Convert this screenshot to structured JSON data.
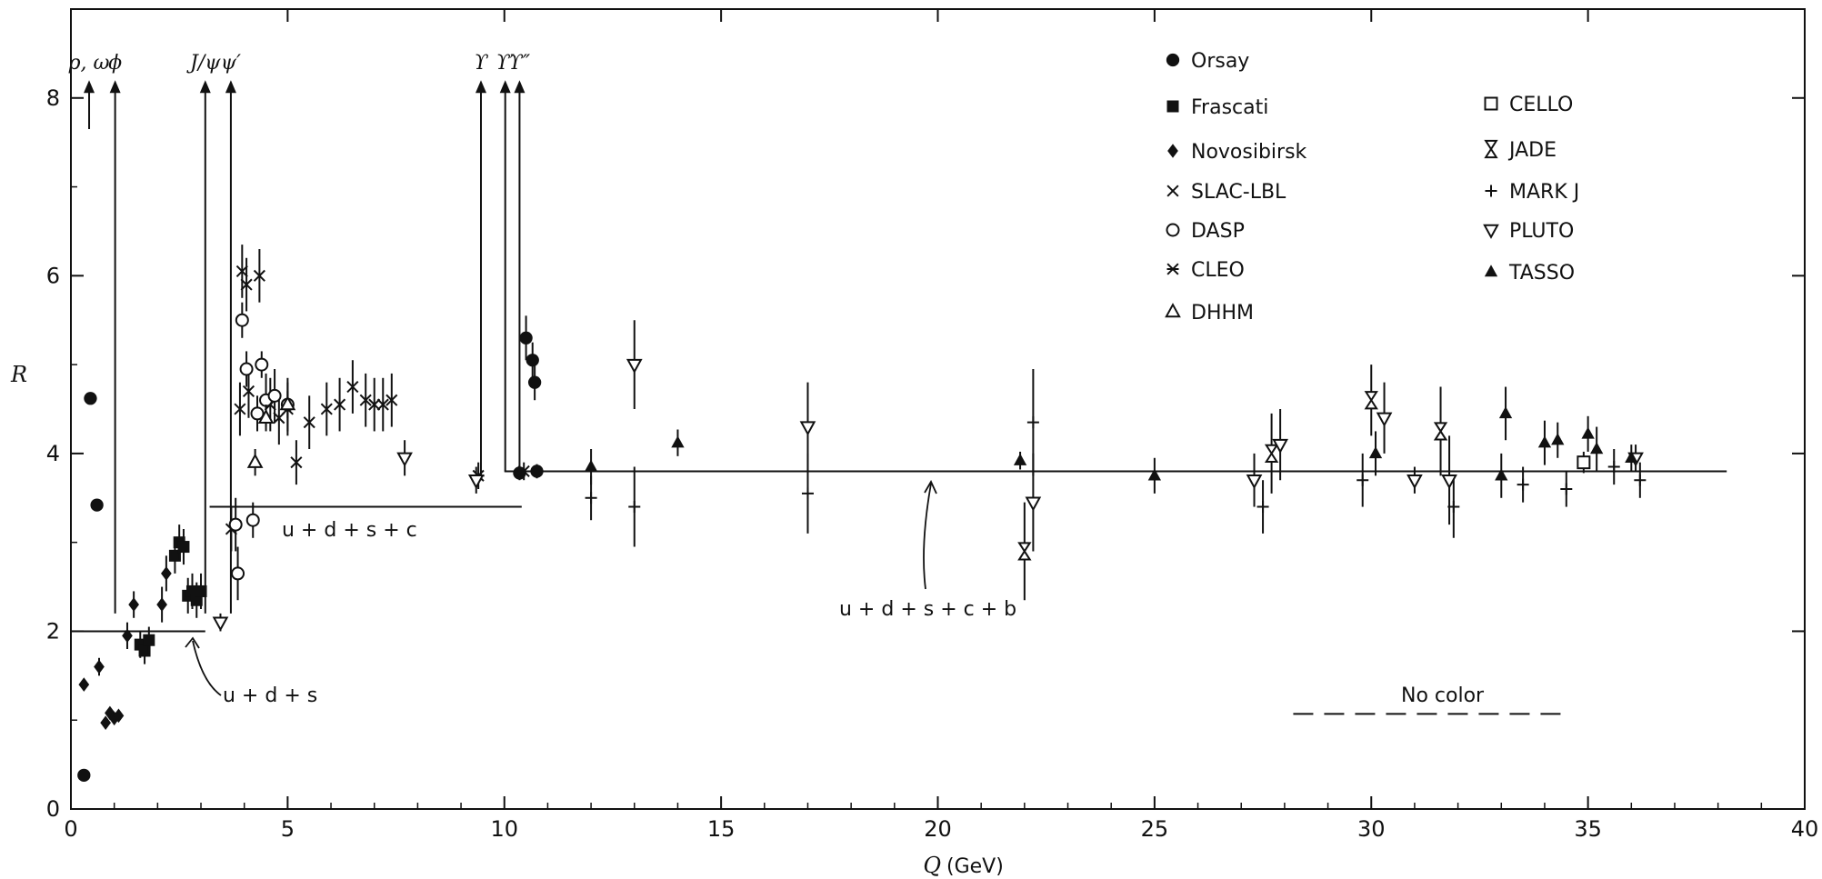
{
  "chart_data": {
    "type": "scatter",
    "xlabel": "Q",
    "xunit": "(GeV)",
    "ylabel": "R",
    "xlim": [
      0,
      40
    ],
    "ylim": [
      0,
      9
    ],
    "xticks": [
      0,
      5,
      10,
      15,
      20,
      25,
      30,
      35,
      40
    ],
    "yticks": [
      0,
      2,
      4,
      6,
      8
    ],
    "grid": false,
    "legend_position": "top-right",
    "quark_lines": [
      {
        "label": "u + d + s",
        "x": [
          0,
          3.1
        ],
        "y": 2.0
      },
      {
        "label": "u + d + s + c",
        "x": [
          3.2,
          10.4
        ],
        "y": 3.4
      },
      {
        "label": "u + d + s + c + b",
        "x": [
          10.0,
          38.2
        ],
        "y": 3.8
      }
    ],
    "no_color_line": {
      "label": "No color",
      "x": [
        28.2,
        34.4
      ],
      "y": 1.07
    },
    "resonances": [
      {
        "label": "ρ, ω",
        "x": 0.42,
        "y_from": 7.65,
        "y_to": 8.2
      },
      {
        "label": "ϕ",
        "x": 1.02,
        "y_from": 2.2,
        "y_to": 8.2
      },
      {
        "label": "J/ψ",
        "x": 3.1,
        "y_from": 2.2,
        "y_to": 8.2
      },
      {
        "label": "ψ′",
        "x": 3.69,
        "y_from": 2.2,
        "y_to": 8.2
      },
      {
        "label": "ϒ",
        "x": 9.46,
        "y_from": 3.7,
        "y_to": 8.2
      },
      {
        "label": "ϒ′",
        "x": 10.02,
        "y_from": 3.8,
        "y_to": 8.2
      },
      {
        "label": "ϒ″",
        "x": 10.35,
        "y_from": 3.8,
        "y_to": 8.2
      }
    ],
    "legend": [
      {
        "label": "Orsay",
        "marker": "circle-filled"
      },
      {
        "label": "Frascati",
        "marker": "square-filled"
      },
      {
        "label": "Novosibirsk",
        "marker": "diamond-filled"
      },
      {
        "label": "SLAC-LBL",
        "marker": "cross"
      },
      {
        "label": "DASP",
        "marker": "circle-open"
      },
      {
        "label": "CLEO",
        "marker": "asterisk"
      },
      {
        "label": "DHHM",
        "marker": "triangle-up-open"
      },
      {
        "label": "CELLO",
        "marker": "square-open"
      },
      {
        "label": "JADE",
        "marker": "hourglass"
      },
      {
        "label": "MARK J",
        "marker": "plus"
      },
      {
        "label": "PLUTO",
        "marker": "triangle-down-open"
      },
      {
        "label": "TASSO",
        "marker": "triangle-up-filled"
      }
    ],
    "series": [
      {
        "name": "Orsay",
        "marker": "circle-filled",
        "points": [
          {
            "x": 0.3,
            "y": 0.38,
            "err": 0.05
          },
          {
            "x": 0.45,
            "y": 4.62,
            "err": 0.05
          },
          {
            "x": 0.6,
            "y": 3.42,
            "err": 0.05
          },
          {
            "x": 10.5,
            "y": 5.3,
            "err": 0.25
          },
          {
            "x": 10.65,
            "y": 5.05,
            "err": 0.2
          },
          {
            "x": 10.7,
            "y": 4.8,
            "err": 0.2
          },
          {
            "x": 10.35,
            "y": 3.78,
            "err": 0.08
          },
          {
            "x": 10.75,
            "y": 3.8,
            "err": 0.08
          }
        ]
      },
      {
        "name": "Frascati",
        "marker": "square-filled",
        "points": [
          {
            "x": 1.6,
            "y": 1.85,
            "err": 0.15
          },
          {
            "x": 1.7,
            "y": 1.78,
            "err": 0.15
          },
          {
            "x": 1.8,
            "y": 1.9,
            "err": 0.15
          },
          {
            "x": 2.4,
            "y": 2.85,
            "err": 0.2
          },
          {
            "x": 2.5,
            "y": 3.0,
            "err": 0.2
          },
          {
            "x": 2.6,
            "y": 2.95,
            "err": 0.2
          },
          {
            "x": 2.7,
            "y": 2.4,
            "err": 0.2
          },
          {
            "x": 2.8,
            "y": 2.45,
            "err": 0.2
          },
          {
            "x": 2.9,
            "y": 2.35,
            "err": 0.2
          },
          {
            "x": 3.0,
            "y": 2.45,
            "err": 0.2
          }
        ]
      },
      {
        "name": "Novosibirsk",
        "marker": "diamond-filled",
        "points": [
          {
            "x": 0.3,
            "y": 1.4,
            "err": 0.05
          },
          {
            "x": 0.65,
            "y": 1.6,
            "err": 0.1
          },
          {
            "x": 0.8,
            "y": 0.97,
            "err": 0.05
          },
          {
            "x": 0.9,
            "y": 1.08,
            "err": 0.05
          },
          {
            "x": 1.0,
            "y": 1.02,
            "err": 0.05
          },
          {
            "x": 1.1,
            "y": 1.05,
            "err": 0.05
          },
          {
            "x": 1.3,
            "y": 1.95,
            "err": 0.15
          },
          {
            "x": 1.45,
            "y": 2.3,
            "err": 0.15
          },
          {
            "x": 2.1,
            "y": 2.3,
            "err": 0.2
          },
          {
            "x": 2.2,
            "y": 2.65,
            "err": 0.2
          }
        ]
      },
      {
        "name": "SLAC-LBL",
        "marker": "cross",
        "points": [
          {
            "x": 3.7,
            "y": 3.15,
            "err": 0.25
          },
          {
            "x": 3.9,
            "y": 4.5,
            "err": 0.3
          },
          {
            "x": 3.95,
            "y": 6.05,
            "err": 0.3
          },
          {
            "x": 4.05,
            "y": 5.9,
            "err": 0.3
          },
          {
            "x": 4.1,
            "y": 4.7,
            "err": 0.3
          },
          {
            "x": 4.35,
            "y": 6.0,
            "err": 0.3
          },
          {
            "x": 4.6,
            "y": 4.55,
            "err": 0.3
          },
          {
            "x": 4.8,
            "y": 4.4,
            "err": 0.3
          },
          {
            "x": 5.0,
            "y": 4.5,
            "err": 0.3
          },
          {
            "x": 5.2,
            "y": 3.9,
            "err": 0.25
          },
          {
            "x": 5.5,
            "y": 4.35,
            "err": 0.3
          },
          {
            "x": 5.9,
            "y": 4.5,
            "err": 0.3
          },
          {
            "x": 6.2,
            "y": 4.55,
            "err": 0.3
          },
          {
            "x": 6.5,
            "y": 4.75,
            "err": 0.3
          },
          {
            "x": 6.8,
            "y": 4.6,
            "err": 0.3
          },
          {
            "x": 7.0,
            "y": 4.55,
            "err": 0.3
          },
          {
            "x": 7.2,
            "y": 4.55,
            "err": 0.3
          },
          {
            "x": 7.4,
            "y": 4.6,
            "err": 0.3
          }
        ]
      },
      {
        "name": "DASP",
        "marker": "circle-open",
        "points": [
          {
            "x": 3.8,
            "y": 3.2,
            "err": 0.3
          },
          {
            "x": 3.85,
            "y": 2.65,
            "err": 0.3
          },
          {
            "x": 3.95,
            "y": 5.5,
            "err": 0.2
          },
          {
            "x": 4.05,
            "y": 4.95,
            "err": 0.2
          },
          {
            "x": 4.2,
            "y": 3.25,
            "err": 0.2
          },
          {
            "x": 4.3,
            "y": 4.45,
            "err": 0.2
          },
          {
            "x": 4.4,
            "y": 5.0,
            "err": 0.15
          },
          {
            "x": 4.5,
            "y": 4.6,
            "err": 0.3
          },
          {
            "x": 4.7,
            "y": 4.65,
            "err": 0.3
          },
          {
            "x": 5.0,
            "y": 4.55,
            "err": 0.3
          }
        ]
      },
      {
        "name": "CLEO",
        "marker": "asterisk",
        "points": [
          {
            "x": 9.4,
            "y": 3.75,
            "err": 0.15
          },
          {
            "x": 10.45,
            "y": 3.8,
            "err": 0.1
          }
        ]
      },
      {
        "name": "DHHM",
        "marker": "triangle-up-open",
        "points": [
          {
            "x": 4.25,
            "y": 3.9,
            "err": 0.15
          },
          {
            "x": 4.5,
            "y": 4.4,
            "err": 0.15
          },
          {
            "x": 5.0,
            "y": 4.55,
            "err": 0.15
          }
        ]
      },
      {
        "name": "CELLO",
        "marker": "square-open",
        "points": [
          {
            "x": 34.9,
            "y": 3.9,
            "err": 0.12
          }
        ]
      },
      {
        "name": "JADE",
        "marker": "hourglass",
        "points": [
          {
            "x": 22.0,
            "y": 2.9,
            "err": 0.55
          },
          {
            "x": 27.7,
            "y": 4.0,
            "err": 0.45
          },
          {
            "x": 30.0,
            "y": 4.6,
            "err": 0.4
          },
          {
            "x": 31.6,
            "y": 4.25,
            "err": 0.5
          }
        ]
      },
      {
        "name": "MARK J",
        "marker": "plus",
        "points": [
          {
            "x": 12.0,
            "y": 3.5,
            "err": 0.25
          },
          {
            "x": 13.0,
            "y": 3.4,
            "err": 0.45
          },
          {
            "x": 17.0,
            "y": 3.55,
            "err": 0.45
          },
          {
            "x": 22.2,
            "y": 4.35,
            "err": 0.6
          },
          {
            "x": 27.5,
            "y": 3.4,
            "err": 0.3
          },
          {
            "x": 29.8,
            "y": 3.7,
            "err": 0.3
          },
          {
            "x": 31.9,
            "y": 3.4,
            "err": 0.35
          },
          {
            "x": 33.5,
            "y": 3.65,
            "err": 0.2
          },
          {
            "x": 34.5,
            "y": 3.6,
            "err": 0.2
          },
          {
            "x": 35.6,
            "y": 3.85,
            "err": 0.2
          },
          {
            "x": 36.2,
            "y": 3.7,
            "err": 0.2
          }
        ]
      },
      {
        "name": "PLUTO",
        "marker": "triangle-down-open",
        "points": [
          {
            "x": 3.45,
            "y": 2.1,
            "err": 0.1
          },
          {
            "x": 7.7,
            "y": 3.95,
            "err": 0.2
          },
          {
            "x": 9.35,
            "y": 3.7,
            "err": 0.15
          },
          {
            "x": 13.0,
            "y": 5.0,
            "err": 0.5
          },
          {
            "x": 17.0,
            "y": 4.3,
            "err": 0.5
          },
          {
            "x": 22.2,
            "y": 3.45,
            "err": 0.55
          },
          {
            "x": 27.3,
            "y": 3.7,
            "err": 0.3
          },
          {
            "x": 27.9,
            "y": 4.1,
            "err": 0.4
          },
          {
            "x": 30.3,
            "y": 4.4,
            "err": 0.4
          },
          {
            "x": 31.0,
            "y": 3.7,
            "err": 0.15
          },
          {
            "x": 31.8,
            "y": 3.7,
            "err": 0.5
          },
          {
            "x": 36.1,
            "y": 3.95,
            "err": 0.15
          }
        ]
      },
      {
        "name": "TASSO",
        "marker": "triangle-up-filled",
        "points": [
          {
            "x": 12.0,
            "y": 3.85,
            "err": 0.2
          },
          {
            "x": 14.0,
            "y": 4.12,
            "err": 0.15
          },
          {
            "x": 21.9,
            "y": 3.92,
            "err": 0.1
          },
          {
            "x": 25.0,
            "y": 3.75,
            "err": 0.2
          },
          {
            "x": 30.1,
            "y": 4.0,
            "err": 0.25
          },
          {
            "x": 33.0,
            "y": 3.75,
            "err": 0.25
          },
          {
            "x": 33.1,
            "y": 4.45,
            "err": 0.3
          },
          {
            "x": 34.0,
            "y": 4.12,
            "err": 0.25
          },
          {
            "x": 34.3,
            "y": 4.15,
            "err": 0.2
          },
          {
            "x": 35.0,
            "y": 4.22,
            "err": 0.2
          },
          {
            "x": 35.2,
            "y": 4.05,
            "err": 0.25
          },
          {
            "x": 36.0,
            "y": 3.95,
            "err": 0.15
          }
        ]
      }
    ]
  }
}
